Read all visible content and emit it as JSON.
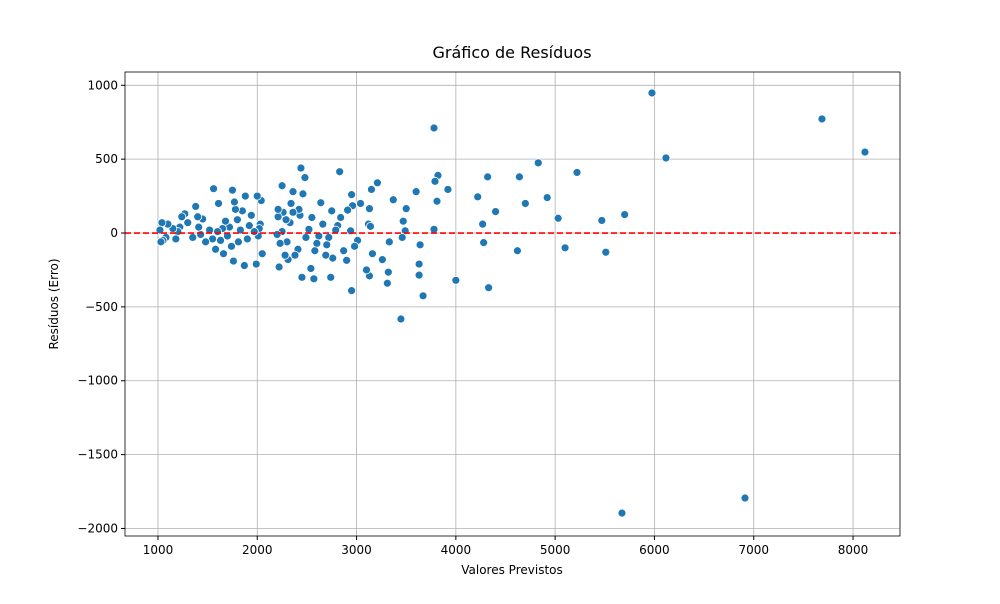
{
  "chart_data": {
    "type": "scatter",
    "title": "Gráfico de Resíduos",
    "x_label": "Valores Previstos",
    "y_label": "Resíduos (Erro)",
    "color": "#1f77b4",
    "grid": true,
    "xlim": [
      668,
      8473
    ],
    "ylim": [
      -2051,
      1090
    ],
    "xticks": [
      1000,
      2000,
      3000,
      4000,
      5000,
      6000,
      7000,
      8000
    ],
    "yticks": [
      {
        "value": -2000,
        "label": "−2000"
      },
      {
        "value": -1500,
        "label": "−1500"
      },
      {
        "value": -1000,
        "label": "−1000"
      },
      {
        "value": -500,
        "label": "−500"
      },
      0,
      500,
      1000
    ],
    "reference_line": {
      "value": 0,
      "color": "#ff0000"
    },
    "x": [
      5975,
      7687,
      8120,
      6116,
      5673,
      6912,
      3780,
      3447,
      5220,
      4830,
      4640,
      4920,
      4700,
      5030,
      5100,
      5470,
      5510,
      5700,
      4620,
      4320,
      4220,
      4400,
      4270,
      4280,
      4330,
      4000,
      3920,
      3820,
      3790,
      3810,
      3780,
      3640,
      3630,
      3630,
      3670,
      3600,
      3500,
      3490,
      3470,
      3460,
      3370,
      3330,
      3320,
      3310,
      3260,
      3210,
      3150,
      3130,
      3120,
      3140,
      3160,
      3130,
      3100,
      3040,
      3010,
      2980,
      2960,
      2950,
      2950,
      2940,
      2910,
      2900,
      2870,
      2840,
      2830,
      2810,
      2790,
      2760,
      2750,
      2740,
      2720,
      2700,
      2690,
      2660,
      2640,
      2620,
      2600,
      2580,
      2570,
      2550,
      2540,
      2520,
      2490,
      2480,
      2460,
      2440,
      2450,
      2430,
      2420,
      2410,
      2380,
      2360,
      2360,
      2340,
      2330,
      2310,
      2300,
      2290,
      2280,
      2260,
      2250,
      2250,
      2230,
      2220,
      2210,
      2210,
      2200,
      2050,
      2040,
      2030,
      2020,
      2010,
      2000,
      1990,
      1970,
      1940,
      1920,
      1900,
      1880,
      1870,
      1850,
      1830,
      1810,
      1800,
      1780,
      1770,
      1760,
      1750,
      1740,
      1720,
      1700,
      1680,
      1660,
      1650,
      1630,
      1610,
      1600,
      1580,
      1560,
      1550,
      1520,
      1480,
      1450,
      1430,
      1410,
      1400,
      1380,
      1350,
      1300,
      1270,
      1240,
      1220,
      1200,
      1180,
      1150,
      1100,
      1080,
      1050,
      1040,
      1030,
      1020
    ],
    "y": [
      948,
      772,
      548,
      508,
      -1896,
      -1794,
      711,
      -582,
      410,
      475,
      380,
      240,
      200,
      100,
      -100,
      85,
      -130,
      125,
      -120,
      380,
      245,
      145,
      60,
      -65,
      -370,
      -320,
      295,
      390,
      350,
      215,
      25,
      -80,
      -210,
      -285,
      -425,
      280,
      165,
      15,
      80,
      -30,
      225,
      -60,
      -265,
      -340,
      -180,
      340,
      295,
      165,
      60,
      45,
      -140,
      -290,
      -250,
      200,
      -50,
      -90,
      185,
      260,
      -390,
      15,
      155,
      -185,
      -120,
      105,
      415,
      50,
      20,
      -170,
      150,
      -300,
      -30,
      -80,
      -150,
      60,
      205,
      -20,
      -70,
      -120,
      -310,
      105,
      -240,
      25,
      -30,
      375,
      265,
      440,
      -300,
      120,
      160,
      -110,
      -150,
      280,
      140,
      200,
      70,
      -180,
      -60,
      90,
      -150,
      140,
      320,
      10,
      -70,
      -230,
      110,
      160,
      -10,
      -140,
      220,
      60,
      30,
      -20,
      250,
      -210,
      10,
      120,
      50,
      -40,
      250,
      -220,
      150,
      20,
      -60,
      90,
      160,
      210,
      -190,
      290,
      -90,
      40,
      -20,
      80,
      -140,
      30,
      -50,
      200,
      10,
      -110,
      300,
      -40,
      20,
      -60,
      95,
      -10,
      40,
      110,
      180,
      -30,
      70,
      130,
      110,
      40,
      10,
      -40,
      30,
      60,
      -30,
      -50,
      70,
      -60,
      20
    ]
  }
}
